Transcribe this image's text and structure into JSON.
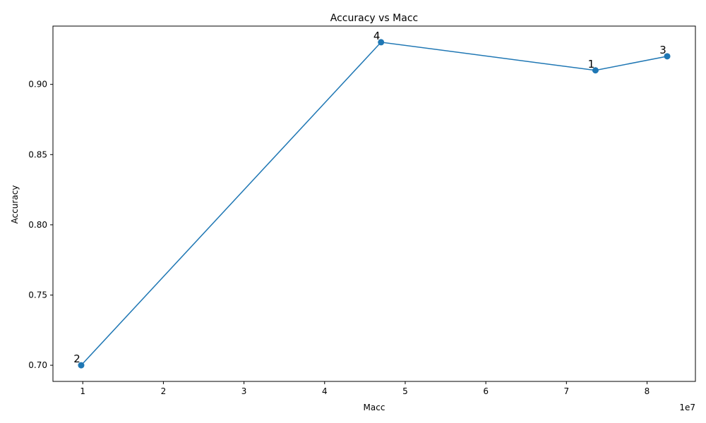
{
  "chart_data": {
    "type": "line",
    "title": "Accuracy vs Macc",
    "xlabel": "Macc",
    "ylabel": "Accuracy",
    "x_offset_label": "1e7",
    "x_scale": 10000000,
    "xlim": [
      6300000,
      86000000
    ],
    "ylim": [
      0.6885,
      0.9415
    ],
    "xticks": [
      10000000,
      20000000,
      30000000,
      40000000,
      50000000,
      60000000,
      70000000,
      80000000
    ],
    "xtick_labels": [
      "1",
      "2",
      "3",
      "4",
      "5",
      "6",
      "7",
      "8"
    ],
    "yticks": [
      0.7,
      0.75,
      0.8,
      0.85,
      0.9
    ],
    "ytick_labels": [
      "0.70",
      "0.75",
      "0.80",
      "0.85",
      "0.90"
    ],
    "grid": false,
    "series": [
      {
        "color": "#1f77b4",
        "marker": "circle",
        "points": [
          {
            "x": 9800000,
            "y": 0.7,
            "label": "2"
          },
          {
            "x": 47000000,
            "y": 0.93,
            "label": "4"
          },
          {
            "x": 73600000,
            "y": 0.91,
            "label": "1"
          },
          {
            "x": 82500000,
            "y": 0.92,
            "label": "3"
          }
        ]
      }
    ]
  }
}
